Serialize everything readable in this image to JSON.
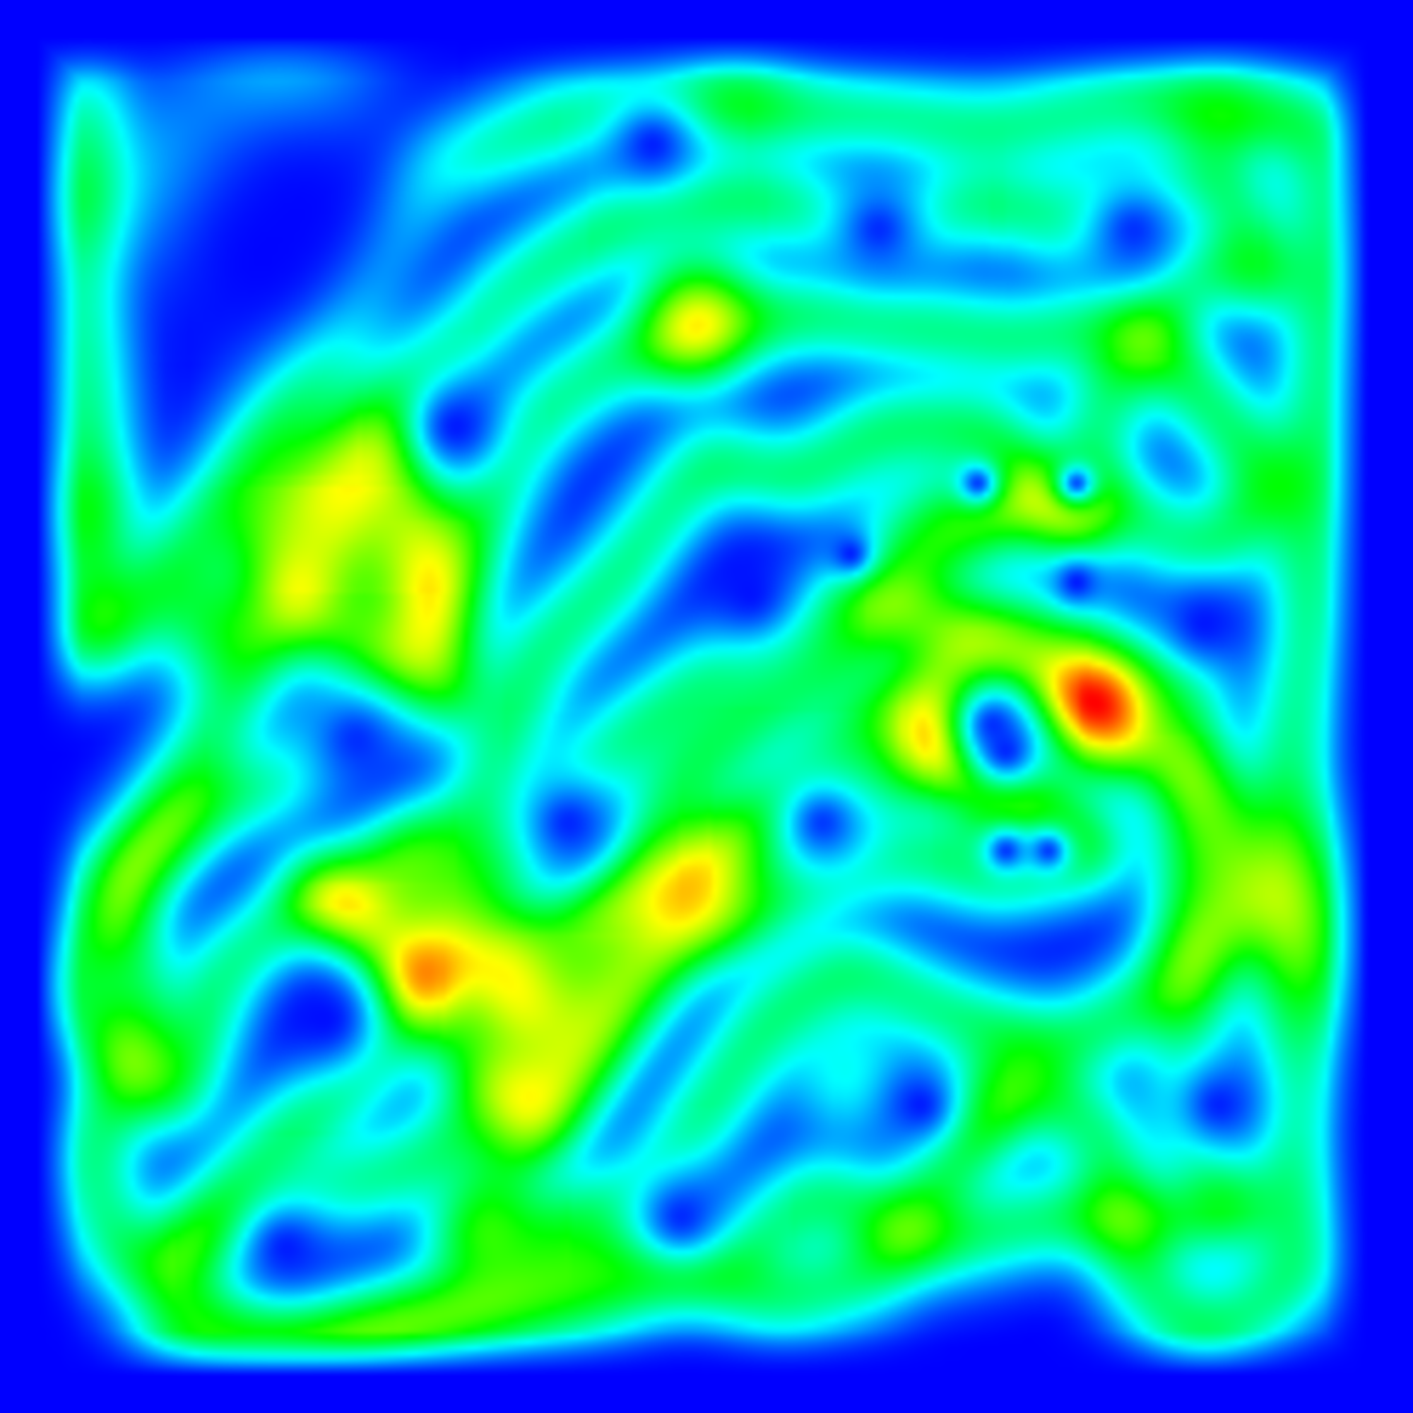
{
  "chart_data": {
    "type": "heatmap",
    "title": "",
    "xlabel": "",
    "ylabel": "",
    "legend": "none",
    "grid": false,
    "axes_visible": false,
    "background_color": "#0000ff",
    "colormap": "jet",
    "colormap_stops": [
      "#0000ff",
      "#00ffff",
      "#00ff00",
      "#ffff00",
      "#ff0000"
    ],
    "domain": {
      "x": [
        0,
        1
      ],
      "y": [
        0,
        1
      ]
    },
    "value_range": [
      0,
      1
    ],
    "point_weight": 0.32,
    "spread": 0.022,
    "trajectory": [
      [
        0.06,
        0.06
      ],
      [
        0.06,
        0.12
      ],
      [
        0.06,
        0.2
      ],
      [
        0.06,
        0.28
      ],
      [
        0.06,
        0.36
      ],
      [
        0.06,
        0.44
      ],
      [
        0.06,
        0.46
      ],
      [
        0.12,
        0.4
      ],
      [
        0.18,
        0.32
      ],
      [
        0.22,
        0.25
      ],
      [
        0.26,
        0.18
      ],
      [
        0.3,
        0.12
      ],
      [
        0.4,
        0.08
      ],
      [
        0.5,
        0.07
      ],
      [
        0.6,
        0.08
      ],
      [
        0.7,
        0.09
      ],
      [
        0.8,
        0.07
      ],
      [
        0.86,
        0.08
      ],
      [
        0.93,
        0.08
      ],
      [
        0.94,
        0.18
      ],
      [
        0.93,
        0.3
      ],
      [
        0.92,
        0.45
      ],
      [
        0.91,
        0.55
      ],
      [
        0.91,
        0.62
      ],
      [
        0.92,
        0.7
      ],
      [
        0.91,
        0.8
      ],
      [
        0.92,
        0.9
      ],
      [
        0.85,
        0.95
      ],
      [
        0.8,
        0.9
      ],
      [
        0.78,
        0.8
      ],
      [
        0.72,
        0.76
      ],
      [
        0.67,
        0.82
      ],
      [
        0.62,
        0.9
      ],
      [
        0.55,
        0.92
      ],
      [
        0.45,
        0.88
      ],
      [
        0.35,
        0.91
      ],
      [
        0.25,
        0.94
      ],
      [
        0.14,
        0.93
      ],
      [
        0.08,
        0.88
      ],
      [
        0.06,
        0.82
      ],
      [
        0.1,
        0.72
      ],
      [
        0.08,
        0.62
      ],
      [
        0.14,
        0.57
      ],
      [
        0.2,
        0.55
      ],
      [
        0.26,
        0.5
      ],
      [
        0.3,
        0.45
      ],
      [
        0.33,
        0.38
      ],
      [
        0.37,
        0.3
      ],
      [
        0.42,
        0.26
      ],
      [
        0.49,
        0.23
      ],
      [
        0.58,
        0.22
      ],
      [
        0.66,
        0.23
      ],
      [
        0.72,
        0.24
      ],
      [
        0.8,
        0.22
      ],
      [
        0.85,
        0.28
      ],
      [
        0.9,
        0.34
      ],
      [
        0.85,
        0.4
      ],
      [
        0.8,
        0.36
      ],
      [
        0.72,
        0.35
      ],
      [
        0.66,
        0.38
      ],
      [
        0.6,
        0.46
      ],
      [
        0.54,
        0.5
      ],
      [
        0.48,
        0.55
      ],
      [
        0.44,
        0.62
      ],
      [
        0.4,
        0.7
      ],
      [
        0.36,
        0.76
      ],
      [
        0.3,
        0.82
      ],
      [
        0.24,
        0.84
      ],
      [
        0.18,
        0.86
      ],
      [
        0.12,
        0.89
      ],
      [
        0.2,
        0.8
      ],
      [
        0.26,
        0.75
      ],
      [
        0.32,
        0.66
      ],
      [
        0.38,
        0.58
      ],
      [
        0.44,
        0.52
      ],
      [
        0.52,
        0.46
      ],
      [
        0.6,
        0.42
      ],
      [
        0.68,
        0.44
      ],
      [
        0.74,
        0.48
      ],
      [
        0.8,
        0.52
      ],
      [
        0.86,
        0.56
      ],
      [
        0.88,
        0.64
      ],
      [
        0.82,
        0.7
      ],
      [
        0.75,
        0.74
      ],
      [
        0.68,
        0.72
      ],
      [
        0.6,
        0.68
      ],
      [
        0.54,
        0.72
      ],
      [
        0.5,
        0.78
      ],
      [
        0.46,
        0.84
      ],
      [
        0.4,
        0.86
      ],
      [
        0.32,
        0.88
      ],
      [
        0.5,
        0.6
      ],
      [
        0.56,
        0.56
      ],
      [
        0.62,
        0.5
      ],
      [
        0.66,
        0.52
      ],
      [
        0.72,
        0.56
      ],
      [
        0.78,
        0.6
      ],
      [
        0.7,
        0.62
      ],
      [
        0.64,
        0.6
      ],
      [
        0.58,
        0.62
      ],
      [
        0.48,
        0.66
      ],
      [
        0.42,
        0.74
      ],
      [
        0.38,
        0.8
      ],
      [
        0.22,
        0.62
      ],
      [
        0.26,
        0.66
      ],
      [
        0.3,
        0.58
      ],
      [
        0.16,
        0.68
      ],
      [
        0.12,
        0.78
      ],
      [
        0.04,
        0.7
      ],
      [
        0.28,
        0.3
      ],
      [
        0.3,
        0.4
      ],
      [
        0.32,
        0.5
      ],
      [
        0.22,
        0.44
      ],
      [
        0.18,
        0.38
      ],
      [
        0.36,
        0.2
      ],
      [
        0.46,
        0.14
      ],
      [
        0.54,
        0.14
      ],
      [
        0.62,
        0.16
      ],
      [
        0.7,
        0.14
      ],
      [
        0.76,
        0.16
      ],
      [
        0.86,
        0.12
      ],
      [
        0.9,
        0.2
      ],
      [
        0.84,
        0.18
      ],
      [
        0.78,
        0.28
      ],
      [
        0.76,
        0.38
      ],
      [
        0.7,
        0.3
      ],
      [
        0.62,
        0.3
      ],
      [
        0.56,
        0.34
      ],
      [
        0.5,
        0.32
      ],
      [
        0.44,
        0.4
      ],
      [
        0.38,
        0.46
      ],
      [
        0.34,
        0.56
      ],
      [
        0.28,
        0.7
      ],
      [
        0.84,
        0.46
      ],
      [
        0.84,
        0.8
      ],
      [
        0.88,
        0.86
      ],
      [
        0.74,
        0.86
      ],
      [
        0.66,
        0.88
      ],
      [
        0.58,
        0.84
      ],
      [
        0.52,
        0.88
      ],
      [
        0.42,
        0.92
      ],
      [
        0.3,
        0.94
      ],
      [
        0.16,
        0.96
      ],
      [
        0.1,
        0.94
      ]
    ],
    "hotspots": [
      [
        0.2,
        0.06,
        0.62,
        0.04
      ],
      [
        0.13,
        0.13,
        0.58,
        0.04
      ],
      [
        0.49,
        0.21,
        0.95,
        0.028
      ],
      [
        0.49,
        0.24,
        0.8,
        0.026
      ],
      [
        0.15,
        0.44,
        0.9,
        0.03
      ],
      [
        0.24,
        0.26,
        0.52,
        0.04
      ],
      [
        0.26,
        0.4,
        0.62,
        0.045
      ],
      [
        0.22,
        0.34,
        0.55,
        0.04
      ],
      [
        0.27,
        0.46,
        0.5,
        0.035
      ],
      [
        0.29,
        0.39,
        0.5,
        0.035
      ],
      [
        0.66,
        0.49,
        1.0,
        0.026
      ],
      [
        0.67,
        0.52,
        0.95,
        0.026
      ],
      [
        0.78,
        0.49,
        1.0,
        0.026
      ],
      [
        0.78,
        0.52,
        0.95,
        0.026
      ],
      [
        0.68,
        0.46,
        0.7,
        0.026
      ],
      [
        0.76,
        0.46,
        0.7,
        0.026
      ],
      [
        0.72,
        0.45,
        0.6,
        0.026
      ],
      [
        0.71,
        0.57,
        0.85,
        0.026
      ],
      [
        0.36,
        0.69,
        0.95,
        0.028
      ],
      [
        0.36,
        0.71,
        0.75,
        0.025
      ],
      [
        0.5,
        0.64,
        0.7,
        0.03
      ],
      [
        0.91,
        0.62,
        0.55,
        0.04
      ],
      [
        0.92,
        0.67,
        0.5,
        0.04
      ],
      [
        0.6,
        0.76,
        0.5,
        0.03
      ],
      [
        0.69,
        0.78,
        0.48,
        0.03
      ],
      [
        0.64,
        0.37,
        0.45,
        0.03
      ],
      [
        0.7,
        0.36,
        0.45,
        0.03
      ],
      [
        0.86,
        0.07,
        0.45,
        0.03
      ],
      [
        0.52,
        0.07,
        0.4,
        0.03
      ],
      [
        0.78,
        0.14,
        0.4,
        0.03
      ],
      [
        0.06,
        0.36,
        0.38,
        0.03
      ],
      [
        0.06,
        0.14,
        0.38,
        0.03
      ]
    ],
    "holes": [
      [
        0.21,
        0.14,
        0.08
      ],
      [
        0.18,
        0.18,
        0.06
      ],
      [
        0.8,
        0.16,
        0.035
      ],
      [
        0.7,
        0.51,
        0.024
      ],
      [
        0.71,
        0.53,
        0.02
      ],
      [
        0.69,
        0.34,
        0.012
      ],
      [
        0.76,
        0.34,
        0.012
      ],
      [
        0.76,
        0.41,
        0.012
      ],
      [
        0.6,
        0.39,
        0.012
      ],
      [
        0.71,
        0.6,
        0.014
      ],
      [
        0.74,
        0.6,
        0.014
      ],
      [
        0.65,
        0.78,
        0.022
      ],
      [
        0.25,
        0.52,
        0.04
      ],
      [
        0.23,
        0.72,
        0.03
      ],
      [
        0.85,
        0.44,
        0.03
      ],
      [
        0.86,
        0.78,
        0.028
      ],
      [
        0.2,
        0.88,
        0.03
      ],
      [
        0.48,
        0.86,
        0.03
      ],
      [
        0.53,
        0.42,
        0.03
      ],
      [
        0.4,
        0.58,
        0.03
      ],
      [
        0.32,
        0.3,
        0.025
      ],
      [
        0.62,
        0.16,
        0.03
      ],
      [
        0.58,
        0.58,
        0.03
      ],
      [
        0.46,
        0.1,
        0.025
      ]
    ]
  }
}
